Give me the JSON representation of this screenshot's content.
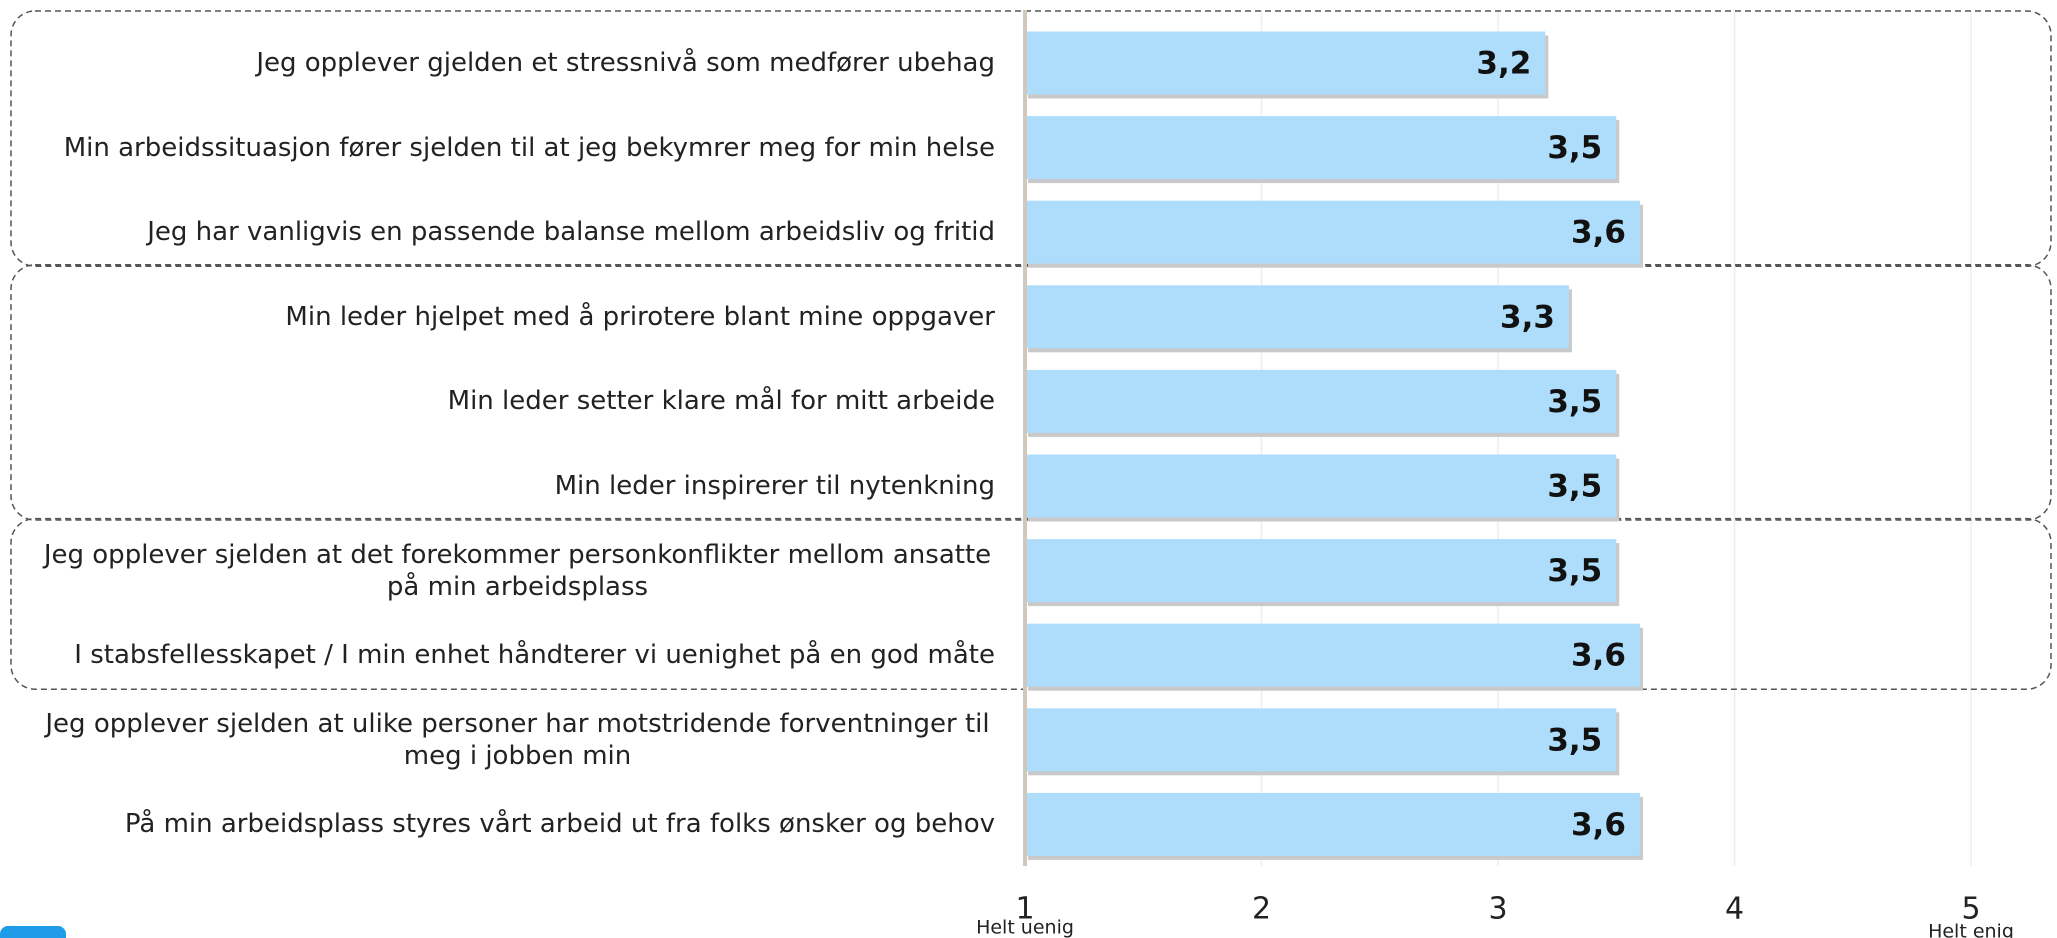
{
  "chart_data": {
    "type": "bar",
    "orientation": "horizontal",
    "categories": [
      "Jeg opplever gjelden et stressnivå som medfører ubehag",
      "Min arbeidssituasjon fører sjelden til at jeg bekymrer meg for min helse",
      "Jeg har vanligvis en passende balanse mellom arbeidsliv og fritid",
      "Min leder hjelpet med å prirotere blant mine oppgaver",
      "Min leder setter klare mål for mitt arbeide",
      "Min leder inspirerer til nytenkning",
      "Jeg opplever sjelden at det forekommer personkonflikter mellom ansatte på min arbeidsplass",
      "I stabsfellesskapet / I min enhet håndterer vi uenighet på en god måte",
      "Jeg opplever sjelden at ulike personer har motstridende forventninger til meg i jobben min",
      "På min arbeidsplass styres vårt arbeid ut fra folks ønsker og behov"
    ],
    "values": [
      3.2,
      3.5,
      3.6,
      3.3,
      3.5,
      3.5,
      3.5,
      3.6,
      3.5,
      3.6
    ],
    "value_labels": [
      "3,2",
      "3,5",
      "3,6",
      "3,3",
      "3,5",
      "3,5",
      "3,5",
      "3,6",
      "3,5",
      "3,6"
    ],
    "color": "#aedcfb",
    "xlim": [
      1,
      5
    ],
    "xticks": [
      1,
      2,
      3,
      4,
      5
    ],
    "grid": true,
    "x_min_label": "Helt uenig",
    "x_max_label": "Helt enig"
  }
}
